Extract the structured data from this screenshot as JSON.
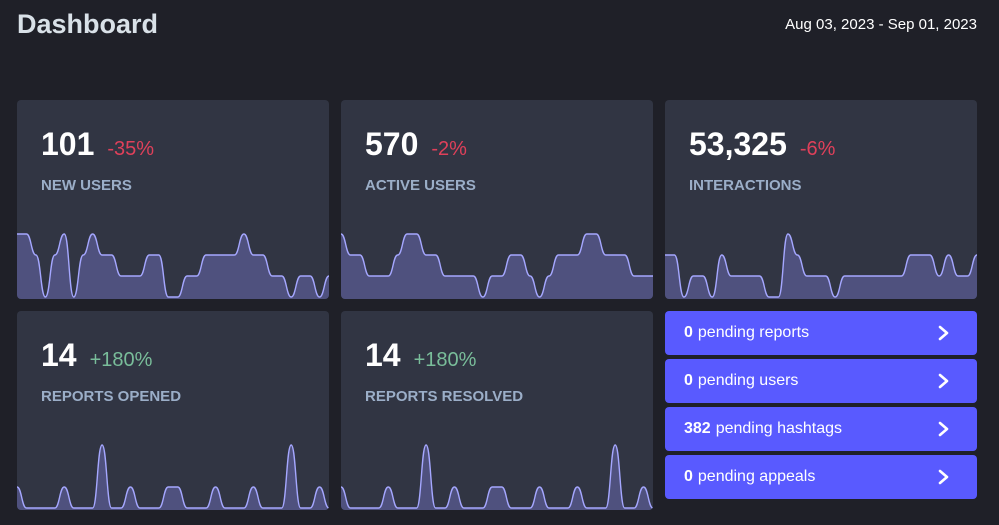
{
  "header": {
    "title": "Dashboard",
    "date_range": "Aug 03, 2023 - Sep 01, 2023"
  },
  "cards": [
    {
      "value": "101",
      "change": "-35%",
      "trend": "negative",
      "label": "New users",
      "series": [
        3,
        3,
        2,
        0,
        2,
        3,
        0,
        2,
        3,
        2,
        2,
        1,
        1,
        1,
        2,
        2,
        0,
        0,
        1,
        1,
        2,
        2,
        2,
        2,
        3,
        2,
        2,
        1,
        1,
        0,
        1,
        1,
        0,
        1
      ]
    },
    {
      "value": "570",
      "change": "-2%",
      "trend": "negative",
      "label": "Active users",
      "series": [
        3,
        2,
        2,
        1,
        1,
        1,
        2,
        3,
        3,
        2,
        2,
        1,
        1,
        1,
        1,
        0,
        1,
        1,
        2,
        2,
        1,
        0,
        1,
        2,
        2,
        2,
        3,
        3,
        2,
        2,
        2,
        1,
        1,
        1
      ]
    },
    {
      "value": "53,325",
      "change": "-6%",
      "trend": "negative",
      "label": "Interactions",
      "series": [
        2,
        2,
        0,
        1,
        1,
        0,
        2,
        1,
        1,
        1,
        1,
        0,
        0,
        3,
        2,
        1,
        1,
        1,
        0,
        1,
        1,
        1,
        1,
        1,
        1,
        1,
        2,
        2,
        2,
        1,
        2,
        1,
        1,
        2
      ]
    },
    {
      "value": "14",
      "change": "+180%",
      "trend": "positive",
      "label": "Reports opened",
      "series": [
        1,
        0,
        0,
        0,
        0,
        1,
        0,
        0,
        0,
        3,
        0,
        0,
        1,
        0,
        0,
        0,
        1,
        1,
        0,
        0,
        0,
        1,
        0,
        0,
        0,
        1,
        0,
        0,
        0,
        3,
        0,
        0,
        1,
        0
      ]
    },
    {
      "value": "14",
      "change": "+180%",
      "trend": "positive",
      "label": "Reports resolved",
      "series": [
        1,
        0,
        0,
        0,
        0,
        1,
        0,
        0,
        0,
        3,
        0,
        0,
        1,
        0,
        0,
        0,
        1,
        1,
        0,
        0,
        0,
        1,
        0,
        0,
        0,
        1,
        0,
        0,
        0,
        3,
        0,
        0,
        1,
        0
      ]
    }
  ],
  "pending": [
    {
      "count": "0",
      "text": "pending reports"
    },
    {
      "count": "0",
      "text": "pending users"
    },
    {
      "count": "382",
      "text": "pending hashtags"
    },
    {
      "count": "0",
      "text": "pending appeals"
    }
  ],
  "colors": {
    "background": "#1f2028",
    "card": "#313543",
    "accent": "#595aff",
    "negative": "#df405a",
    "positive": "#79bd9a",
    "label": "#9baec8",
    "spark_line": "#a5a7ff",
    "spark_fill": "#5a5b91"
  },
  "icons": {
    "pending_chevron": "chevron-right-icon"
  }
}
